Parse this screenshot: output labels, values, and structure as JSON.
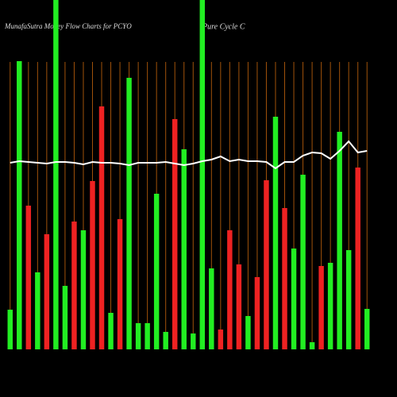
{
  "chart_data": {
    "type": "bar",
    "title": "MunafaSutra Money Flow Charts for PCYO",
    "subtitle": "Pure   Cycle   C",
    "categories": [
      null,
      null,
      null,
      null,
      null,
      null,
      null,
      null,
      null,
      null,
      null,
      null,
      null,
      null,
      null,
      null,
      null,
      null,
      null,
      null,
      null,
      null,
      null,
      null,
      null,
      null,
      null,
      null,
      null,
      null,
      null,
      null,
      null,
      null,
      null,
      null,
      null,
      null,
      null,
      null
    ],
    "values": [
      50,
      363,
      181,
      97,
      145,
      440,
      80,
      161,
      150,
      212,
      306,
      46,
      164,
      342,
      33,
      33,
      196,
      22,
      290,
      252,
      20,
      440,
      102,
      25,
      150,
      107,
      42,
      91,
      213,
      293,
      178,
      127,
      220,
      9,
      105,
      109,
      274,
      125,
      229,
      51
    ],
    "colors": [
      "#22ee22",
      "#22ee22",
      "#ee2222",
      "#22ee22",
      "#ee2222",
      "#22ee22",
      "#22ee22",
      "#ee2222",
      "#22ee22",
      "#ee2222",
      "#ee2222",
      "#22ee22",
      "#ee2222",
      "#22ee22",
      "#22ee22",
      "#22ee22",
      "#22ee22",
      "#22ee22",
      "#ee2222",
      "#22ee22",
      "#22ee22",
      "#22ee22",
      "#22ee22",
      "#ee2222",
      "#ee2222",
      "#ee2222",
      "#22ee22",
      "#ee2222",
      "#ee2222",
      "#22ee22",
      "#ee2222",
      "#22ee22",
      "#22ee22",
      "#22ee22",
      "#ee2222",
      "#22ee22",
      "#22ee22",
      "#22ee22",
      "#ee2222",
      "#22ee22"
    ],
    "line": {
      "color": "#ffffff",
      "values": [
        235,
        237,
        236,
        235,
        234,
        236,
        236,
        235,
        233,
        236,
        235,
        235,
        234,
        232,
        235,
        235,
        235,
        236,
        234,
        232,
        234,
        237,
        239,
        243,
        237,
        239,
        237,
        237,
        236,
        228,
        236,
        236,
        244,
        248,
        247,
        240,
        250,
        262,
        248,
        250
      ]
    },
    "ylim": [
      0,
      440
    ]
  }
}
